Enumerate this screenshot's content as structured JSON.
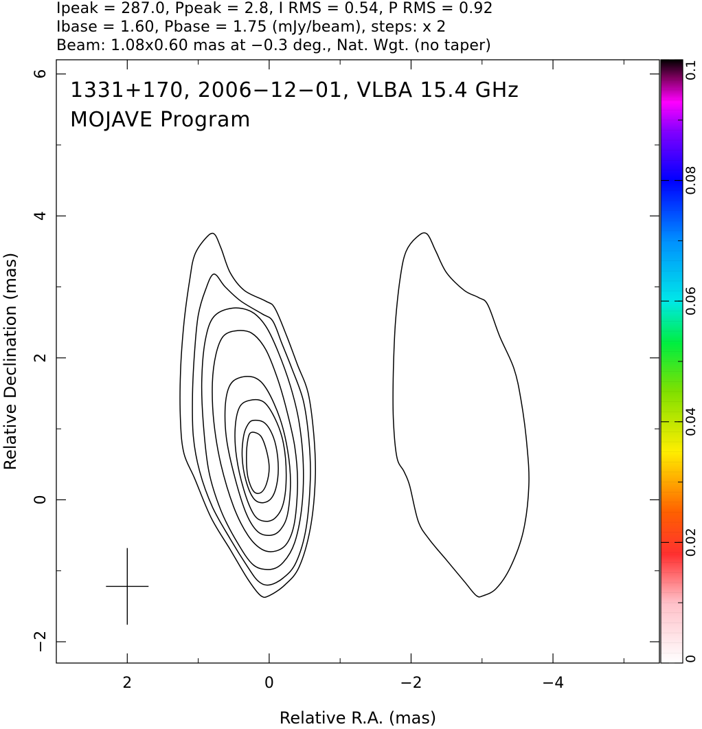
{
  "header": {
    "line1": "Ipeak = 287.0, Ppeak = 2.8, I RMS = 0.54, P RMS = 0.92",
    "line2": "Ibase = 1.60, Pbase = 1.75 (mJy/beam), steps: x 2",
    "line3": "Beam: 1.08x0.60 mas at −0.3 deg., Nat. Wgt. (no taper)"
  },
  "chart_data": {
    "type": "contour",
    "annotation": {
      "line1": "1331+170, 2006−12−01, VLBA 15.4 GHz",
      "line2": "MOJAVE Program"
    },
    "xlabel": "Relative R.A. (mas)",
    "ylabel": "Relative Declination (mas)",
    "xlim": [
      3.0,
      -5.5
    ],
    "ylim": [
      -2.3,
      6.2
    ],
    "x_ticks": [
      {
        "value": 2,
        "label": "2"
      },
      {
        "value": 0,
        "label": "0"
      },
      {
        "value": -2,
        "label": "−2"
      },
      {
        "value": -4,
        "label": "−4"
      }
    ],
    "y_ticks": [
      {
        "value": -2,
        "label": "−2"
      },
      {
        "value": 0,
        "label": "0"
      },
      {
        "value": 2,
        "label": "2"
      },
      {
        "value": 4,
        "label": "4"
      },
      {
        "value": 6,
        "label": "6"
      }
    ],
    "beam": {
      "major_mas": 1.08,
      "minor_mas": 0.6,
      "pa_deg": -0.3,
      "center": [
        2.0,
        -1.22
      ]
    },
    "contours": [
      {
        "level": 1,
        "points": [
          [
            0.78,
            3.75
          ],
          [
            0.68,
            3.55
          ],
          [
            0.55,
            3.2
          ],
          [
            0.35,
            2.95
          ],
          [
            0.05,
            2.8
          ],
          [
            -0.08,
            2.7
          ],
          [
            -0.25,
            2.3
          ],
          [
            -0.4,
            1.9
          ],
          [
            -0.55,
            1.5
          ],
          [
            -0.63,
            0.9
          ],
          [
            -0.65,
            0.3
          ],
          [
            -0.58,
            -0.4
          ],
          [
            -0.42,
            -0.95
          ],
          [
            -0.22,
            -1.2
          ],
          [
            0.0,
            -1.35
          ],
          [
            0.12,
            -1.35
          ],
          [
            0.3,
            -1.12
          ],
          [
            0.55,
            -0.7
          ],
          [
            0.82,
            -0.25
          ],
          [
            1.05,
            0.3
          ],
          [
            1.2,
            0.65
          ],
          [
            1.25,
            1.1
          ],
          [
            1.25,
            1.8
          ],
          [
            1.2,
            2.5
          ],
          [
            1.12,
            3.1
          ],
          [
            1.05,
            3.45
          ],
          [
            0.9,
            3.68
          ]
        ]
      },
      {
        "level": 2,
        "points": [
          [
            0.78,
            3.18
          ],
          [
            0.62,
            3.0
          ],
          [
            0.4,
            2.8
          ],
          [
            0.1,
            2.62
          ],
          [
            -0.05,
            2.52
          ],
          [
            -0.18,
            2.2
          ],
          [
            -0.32,
            1.85
          ],
          [
            -0.48,
            1.4
          ],
          [
            -0.56,
            0.85
          ],
          [
            -0.58,
            0.3
          ],
          [
            -0.52,
            -0.4
          ],
          [
            -0.38,
            -0.88
          ],
          [
            -0.2,
            -1.1
          ],
          [
            0.0,
            -1.2
          ],
          [
            0.15,
            -1.15
          ],
          [
            0.3,
            -0.95
          ],
          [
            0.55,
            -0.55
          ],
          [
            0.8,
            -0.1
          ],
          [
            0.98,
            0.4
          ],
          [
            1.07,
            0.9
          ],
          [
            1.08,
            1.5
          ],
          [
            1.05,
            2.1
          ],
          [
            1.0,
            2.6
          ],
          [
            0.9,
            2.95
          ]
        ]
      },
      {
        "level": 4,
        "points": [
          [
            0.52,
            2.7
          ],
          [
            0.25,
            2.65
          ],
          [
            0.05,
            2.45
          ],
          [
            -0.12,
            2.1
          ],
          [
            -0.3,
            1.6
          ],
          [
            -0.42,
            1.1
          ],
          [
            -0.48,
            0.5
          ],
          [
            -0.46,
            -0.1
          ],
          [
            -0.36,
            -0.6
          ],
          [
            -0.2,
            -0.88
          ],
          [
            -0.02,
            -0.98
          ],
          [
            0.22,
            -0.92
          ],
          [
            0.45,
            -0.6
          ],
          [
            0.68,
            -0.15
          ],
          [
            0.85,
            0.4
          ],
          [
            0.93,
            1.1
          ],
          [
            0.95,
            1.7
          ],
          [
            0.9,
            2.25
          ],
          [
            0.78,
            2.58
          ]
        ]
      },
      {
        "level": 8,
        "points": [
          [
            0.48,
            2.38
          ],
          [
            0.25,
            2.35
          ],
          [
            0.05,
            2.12
          ],
          [
            -0.12,
            1.7
          ],
          [
            -0.25,
            1.25
          ],
          [
            -0.36,
            0.75
          ],
          [
            -0.4,
            0.25
          ],
          [
            -0.36,
            -0.3
          ],
          [
            -0.26,
            -0.6
          ],
          [
            -0.1,
            -0.72
          ],
          [
            0.1,
            -0.7
          ],
          [
            0.3,
            -0.5
          ],
          [
            0.5,
            -0.1
          ],
          [
            0.68,
            0.5
          ],
          [
            0.78,
            1.1
          ],
          [
            0.8,
            1.65
          ],
          [
            0.75,
            2.05
          ],
          [
            0.65,
            2.3
          ]
        ]
      },
      {
        "level": 16,
        "points": [
          [
            0.42,
            1.72
          ],
          [
            0.2,
            1.72
          ],
          [
            0.03,
            1.55
          ],
          [
            -0.15,
            1.15
          ],
          [
            -0.26,
            0.7
          ],
          [
            -0.3,
            0.25
          ],
          [
            -0.26,
            -0.2
          ],
          [
            -0.16,
            -0.42
          ],
          [
            -0.02,
            -0.5
          ],
          [
            0.16,
            -0.45
          ],
          [
            0.32,
            -0.2
          ],
          [
            0.48,
            0.3
          ],
          [
            0.6,
            0.85
          ],
          [
            0.62,
            1.3
          ],
          [
            0.56,
            1.6
          ]
        ]
      },
      {
        "level": 32,
        "points": [
          [
            0.28,
            1.4
          ],
          [
            0.08,
            1.38
          ],
          [
            -0.08,
            1.15
          ],
          [
            -0.2,
            0.8
          ],
          [
            -0.24,
            0.35
          ],
          [
            -0.2,
            -0.05
          ],
          [
            -0.08,
            -0.26
          ],
          [
            0.08,
            -0.3
          ],
          [
            0.22,
            -0.2
          ],
          [
            0.36,
            0.15
          ],
          [
            0.46,
            0.6
          ],
          [
            0.48,
            1.0
          ],
          [
            0.42,
            1.3
          ]
        ]
      },
      {
        "level": 64,
        "points": [
          [
            0.22,
            1.12
          ],
          [
            0.06,
            1.08
          ],
          [
            -0.06,
            0.88
          ],
          [
            -0.12,
            0.6
          ],
          [
            -0.12,
            0.3
          ],
          [
            -0.05,
            0.05
          ],
          [
            0.08,
            -0.04
          ],
          [
            0.22,
            0.02
          ],
          [
            0.33,
            0.28
          ],
          [
            0.38,
            0.6
          ],
          [
            0.36,
            0.9
          ],
          [
            0.3,
            1.06
          ]
        ]
      },
      {
        "level": 128,
        "points": [
          [
            0.25,
            0.95
          ],
          [
            0.12,
            0.9
          ],
          [
            0.04,
            0.7
          ],
          [
            0.0,
            0.45
          ],
          [
            0.04,
            0.22
          ],
          [
            0.12,
            0.1
          ],
          [
            0.22,
            0.12
          ],
          [
            0.3,
            0.32
          ],
          [
            0.32,
            0.6
          ],
          [
            0.3,
            0.85
          ]
        ]
      }
    ],
    "pol_contour": {
      "points": [
        [
          -2.22,
          3.75
        ],
        [
          -2.35,
          3.5
        ],
        [
          -2.5,
          3.2
        ],
        [
          -2.75,
          2.95
        ],
        [
          -2.95,
          2.85
        ],
        [
          -3.08,
          2.75
        ],
        [
          -3.25,
          2.3
        ],
        [
          -3.45,
          1.85
        ],
        [
          -3.55,
          1.4
        ],
        [
          -3.63,
          0.8
        ],
        [
          -3.66,
          0.2
        ],
        [
          -3.58,
          -0.45
        ],
        [
          -3.4,
          -0.95
        ],
        [
          -3.2,
          -1.25
        ],
        [
          -3.02,
          -1.35
        ],
        [
          -2.92,
          -1.35
        ],
        [
          -2.75,
          -1.15
        ],
        [
          -2.5,
          -0.85
        ],
        [
          -2.25,
          -0.55
        ],
        [
          -2.1,
          -0.3
        ],
        [
          -1.98,
          0.2
        ],
        [
          -1.9,
          0.4
        ],
        [
          -1.8,
          0.6
        ],
        [
          -1.75,
          1.15
        ],
        [
          -1.75,
          1.8
        ],
        [
          -1.78,
          2.5
        ],
        [
          -1.85,
          3.15
        ],
        [
          -1.93,
          3.5
        ],
        [
          -2.08,
          3.7
        ]
      ]
    },
    "colorbar": {
      "min": 0,
      "max": 0.1,
      "ticks": [
        {
          "value": 0,
          "label": "0"
        },
        {
          "value": 0.02,
          "label": "0.02"
        },
        {
          "value": 0.04,
          "label": "0.04"
        },
        {
          "value": 0.06,
          "label": "0.06"
        },
        {
          "value": 0.08,
          "label": "0.08"
        },
        {
          "value": 0.1,
          "label": "0.1"
        }
      ],
      "stops": [
        {
          "value": 0.0,
          "color": "#ffffff"
        },
        {
          "value": 0.01,
          "color": "#ffc0c8"
        },
        {
          "value": 0.018,
          "color": "#ff3030"
        },
        {
          "value": 0.025,
          "color": "#ff6000"
        },
        {
          "value": 0.035,
          "color": "#ffee00"
        },
        {
          "value": 0.045,
          "color": "#80e000"
        },
        {
          "value": 0.053,
          "color": "#00ee40"
        },
        {
          "value": 0.06,
          "color": "#00e8e8"
        },
        {
          "value": 0.07,
          "color": "#0090ff"
        },
        {
          "value": 0.08,
          "color": "#0000ff"
        },
        {
          "value": 0.088,
          "color": "#8000ff"
        },
        {
          "value": 0.093,
          "color": "#ff00ff"
        },
        {
          "value": 0.097,
          "color": "#800060"
        },
        {
          "value": 0.1,
          "color": "#000000"
        }
      ]
    }
  }
}
